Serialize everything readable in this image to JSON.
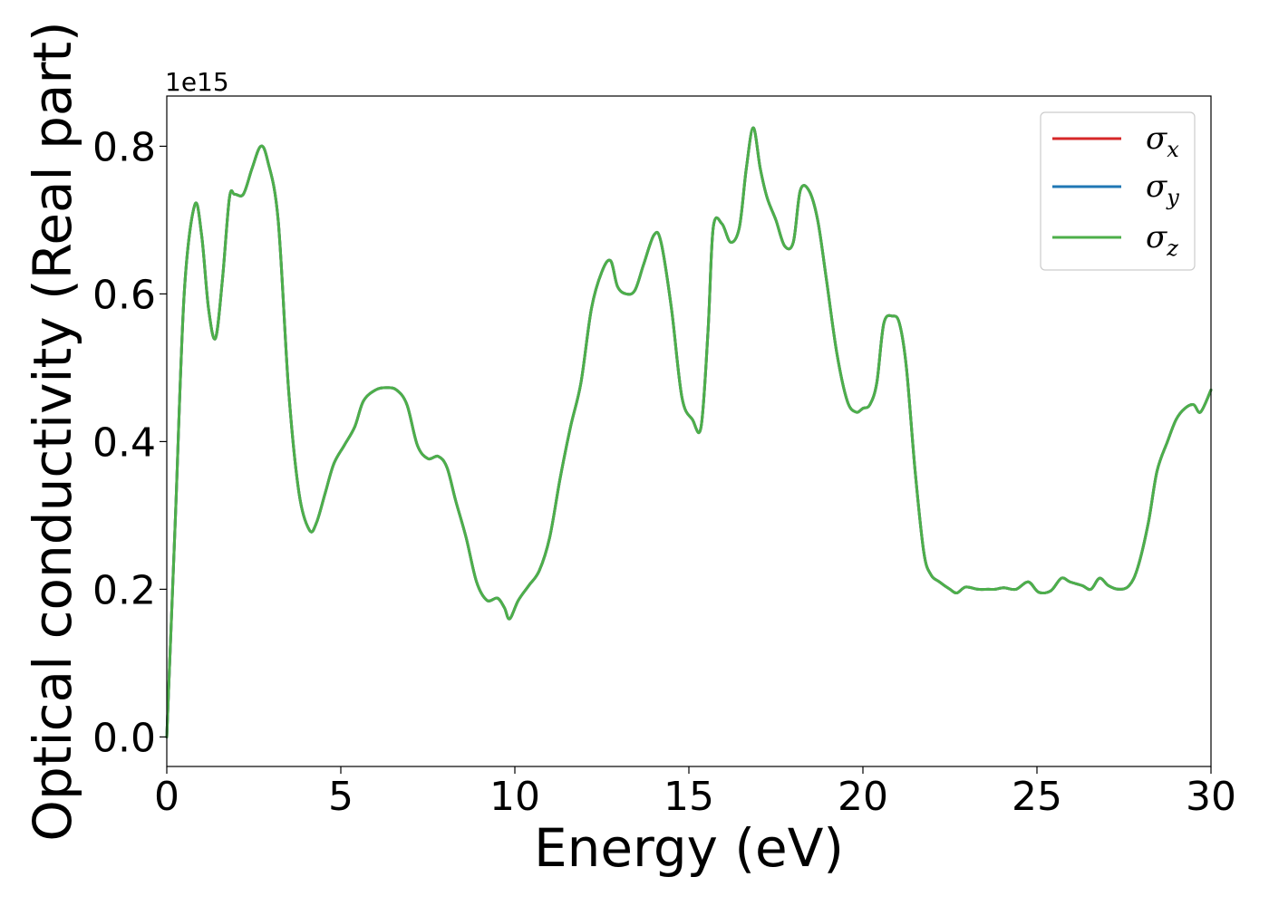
{
  "chart_data": {
    "type": "line",
    "title": "",
    "xlabel": "Energy (eV)",
    "ylabel": "Optical conductivity (Real part)",
    "y_offset_label": "1e15",
    "xlim": [
      0,
      30
    ],
    "ylim": [
      -0.04,
      0.868
    ],
    "xticks": [
      0,
      5,
      10,
      15,
      20,
      25,
      30
    ],
    "xtick_labels": [
      "0",
      "5",
      "10",
      "15",
      "20",
      "25",
      "30"
    ],
    "yticks": [
      0.0,
      0.2,
      0.4,
      0.6,
      0.8
    ],
    "ytick_labels": [
      "0.0",
      "0.2",
      "0.4",
      "0.6",
      "0.8"
    ],
    "grid": false,
    "legend_position": "top-right",
    "x": [
      0,
      0.25,
      0.5,
      0.8,
      1.0,
      1.2,
      1.4,
      1.6,
      1.8,
      1.95,
      2.2,
      2.45,
      2.7,
      2.9,
      3.2,
      3.5,
      3.8,
      4.1,
      4.3,
      4.55,
      4.8,
      5.1,
      5.4,
      5.65,
      6.0,
      6.3,
      6.6,
      6.9,
      7.2,
      7.5,
      7.8,
      8.05,
      8.3,
      8.6,
      8.9,
      9.2,
      9.5,
      9.7,
      9.85,
      10.1,
      10.4,
      10.7,
      11.0,
      11.3,
      11.6,
      11.9,
      12.2,
      12.5,
      12.75,
      12.95,
      13.2,
      13.45,
      13.7,
      14.0,
      14.2,
      14.5,
      14.8,
      15.1,
      15.35,
      15.55,
      15.7,
      15.95,
      16.2,
      16.45,
      16.65,
      16.85,
      17.05,
      17.25,
      17.5,
      17.75,
      18.0,
      18.2,
      18.45,
      18.7,
      18.95,
      19.25,
      19.55,
      19.8,
      20.0,
      20.2,
      20.4,
      20.6,
      20.85,
      21.05,
      21.25,
      21.5,
      21.75,
      21.95,
      22.2,
      22.5,
      22.7,
      22.95,
      23.3,
      23.6,
      23.8,
      24.05,
      24.4,
      24.75,
      25.05,
      25.4,
      25.7,
      25.95,
      26.3,
      26.55,
      26.8,
      27.05,
      27.35,
      27.65,
      27.9,
      28.2,
      28.45,
      28.75,
      29.0,
      29.25,
      29.5,
      29.7,
      30.0
    ],
    "series": [
      {
        "name": "σx",
        "color": "#d62728",
        "values": [
          0.0,
          0.3,
          0.6,
          0.72,
          0.68,
          0.58,
          0.54,
          0.62,
          0.73,
          0.735,
          0.735,
          0.77,
          0.8,
          0.78,
          0.7,
          0.47,
          0.33,
          0.28,
          0.29,
          0.33,
          0.37,
          0.395,
          0.42,
          0.455,
          0.47,
          0.473,
          0.47,
          0.45,
          0.395,
          0.377,
          0.38,
          0.365,
          0.32,
          0.27,
          0.21,
          0.185,
          0.188,
          0.175,
          0.16,
          0.185,
          0.205,
          0.225,
          0.27,
          0.35,
          0.42,
          0.48,
          0.58,
          0.63,
          0.645,
          0.61,
          0.6,
          0.605,
          0.64,
          0.68,
          0.67,
          0.58,
          0.46,
          0.43,
          0.42,
          0.55,
          0.69,
          0.695,
          0.67,
          0.69,
          0.77,
          0.825,
          0.77,
          0.73,
          0.7,
          0.665,
          0.67,
          0.74,
          0.74,
          0.7,
          0.62,
          0.52,
          0.455,
          0.44,
          0.445,
          0.45,
          0.48,
          0.56,
          0.57,
          0.56,
          0.5,
          0.36,
          0.25,
          0.22,
          0.21,
          0.2,
          0.195,
          0.203,
          0.2,
          0.2,
          0.2,
          0.202,
          0.2,
          0.21,
          0.196,
          0.198,
          0.215,
          0.21,
          0.205,
          0.2,
          0.215,
          0.205,
          0.2,
          0.205,
          0.23,
          0.29,
          0.36,
          0.4,
          0.43,
          0.445,
          0.45,
          0.44,
          0.47
        ]
      },
      {
        "name": "σy",
        "color": "#1f77b4",
        "values": [
          0.0,
          0.3,
          0.6,
          0.72,
          0.68,
          0.58,
          0.54,
          0.62,
          0.73,
          0.735,
          0.735,
          0.77,
          0.8,
          0.78,
          0.7,
          0.47,
          0.33,
          0.28,
          0.29,
          0.33,
          0.37,
          0.395,
          0.42,
          0.455,
          0.47,
          0.473,
          0.47,
          0.45,
          0.395,
          0.377,
          0.38,
          0.365,
          0.32,
          0.27,
          0.21,
          0.185,
          0.188,
          0.175,
          0.16,
          0.185,
          0.205,
          0.225,
          0.27,
          0.35,
          0.42,
          0.48,
          0.58,
          0.63,
          0.645,
          0.61,
          0.6,
          0.605,
          0.64,
          0.68,
          0.67,
          0.58,
          0.46,
          0.43,
          0.42,
          0.55,
          0.69,
          0.695,
          0.67,
          0.69,
          0.77,
          0.825,
          0.77,
          0.73,
          0.7,
          0.665,
          0.67,
          0.74,
          0.74,
          0.7,
          0.62,
          0.52,
          0.455,
          0.44,
          0.445,
          0.45,
          0.48,
          0.56,
          0.57,
          0.56,
          0.5,
          0.36,
          0.25,
          0.22,
          0.21,
          0.2,
          0.195,
          0.203,
          0.2,
          0.2,
          0.2,
          0.202,
          0.2,
          0.21,
          0.196,
          0.198,
          0.215,
          0.21,
          0.205,
          0.2,
          0.215,
          0.205,
          0.2,
          0.205,
          0.23,
          0.29,
          0.36,
          0.4,
          0.43,
          0.445,
          0.45,
          0.44,
          0.47
        ]
      },
      {
        "name": "σz",
        "color": "#4daf4a",
        "values": [
          0.0,
          0.3,
          0.6,
          0.72,
          0.68,
          0.58,
          0.54,
          0.62,
          0.73,
          0.735,
          0.735,
          0.77,
          0.8,
          0.78,
          0.7,
          0.47,
          0.33,
          0.28,
          0.29,
          0.33,
          0.37,
          0.395,
          0.42,
          0.455,
          0.47,
          0.473,
          0.47,
          0.45,
          0.395,
          0.377,
          0.38,
          0.365,
          0.32,
          0.27,
          0.21,
          0.185,
          0.188,
          0.175,
          0.16,
          0.185,
          0.205,
          0.225,
          0.27,
          0.35,
          0.42,
          0.48,
          0.58,
          0.63,
          0.645,
          0.61,
          0.6,
          0.605,
          0.64,
          0.68,
          0.67,
          0.58,
          0.46,
          0.43,
          0.42,
          0.55,
          0.69,
          0.695,
          0.67,
          0.69,
          0.77,
          0.825,
          0.77,
          0.73,
          0.7,
          0.665,
          0.67,
          0.74,
          0.74,
          0.7,
          0.62,
          0.52,
          0.455,
          0.44,
          0.445,
          0.45,
          0.48,
          0.56,
          0.57,
          0.56,
          0.5,
          0.36,
          0.25,
          0.22,
          0.21,
          0.2,
          0.195,
          0.203,
          0.2,
          0.2,
          0.2,
          0.202,
          0.2,
          0.21,
          0.196,
          0.198,
          0.215,
          0.21,
          0.205,
          0.2,
          0.215,
          0.205,
          0.2,
          0.205,
          0.23,
          0.29,
          0.36,
          0.4,
          0.43,
          0.445,
          0.45,
          0.44,
          0.47
        ]
      }
    ],
    "legend": [
      {
        "symbol": "σ",
        "sub": "x"
      },
      {
        "symbol": "σ",
        "sub": "y"
      },
      {
        "symbol": "σ",
        "sub": "z"
      }
    ]
  }
}
